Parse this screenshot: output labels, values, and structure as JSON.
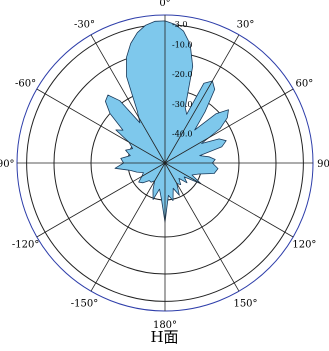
{
  "chart_data": {
    "type": "polar",
    "title": "H面",
    "radial_unit": "dB",
    "radial_range": [
      -50,
      0
    ],
    "grid": true,
    "colors": {
      "fill": "#7ec8ec",
      "stroke": "#1a3a5a",
      "outer_circle": "#2e3eaa",
      "grid": "#222222"
    },
    "angle_ticks": [
      {
        "angle": 0,
        "label": "0°"
      },
      {
        "angle": 30,
        "label": "30°"
      },
      {
        "angle": 60,
        "label": "60°"
      },
      {
        "angle": 90,
        "label": "90°"
      },
      {
        "angle": 120,
        "label": "120°"
      },
      {
        "angle": 150,
        "label": "150°"
      },
      {
        "angle": 180,
        "label": "180°"
      },
      {
        "angle": -150,
        "label": "-150°"
      },
      {
        "angle": -120,
        "label": "-120°"
      },
      {
        "angle": -90,
        "label": "-90°"
      },
      {
        "angle": -60,
        "label": "-60°"
      },
      {
        "angle": -30,
        "label": "-30°"
      }
    ],
    "radial_ticks": [
      {
        "value": -3,
        "label": "-3.0"
      },
      {
        "value": -10,
        "label": "-10.0"
      },
      {
        "value": -20,
        "label": "-20.0"
      },
      {
        "value": -30,
        "label": "-30.0"
      },
      {
        "value": -40,
        "label": "-40.0"
      }
    ],
    "series": [
      {
        "theta": [
          0,
          4,
          8,
          12,
          16,
          20,
          24,
          26,
          30,
          34,
          38,
          42,
          46,
          50,
          54,
          58,
          62,
          66,
          70,
          74,
          78,
          82,
          86,
          90,
          96,
          102,
          108,
          114,
          120,
          126,
          132,
          138,
          144,
          150,
          156,
          162,
          168,
          174,
          180,
          186,
          192,
          198,
          204,
          210,
          216,
          222,
          228,
          234,
          240,
          246,
          252,
          258,
          264,
          270,
          276,
          282,
          288,
          294,
          300,
          304,
          308,
          312,
          316,
          320,
          324,
          328,
          332,
          336,
          340,
          344,
          348,
          352,
          356
        ],
        "r_db": [
          -2,
          -3,
          -5,
          -9,
          -16,
          -30,
          -32,
          -20,
          -18,
          -20,
          -28,
          -35,
          -26,
          -22,
          -24,
          -28,
          -36,
          -30,
          -28,
          -30,
          -38,
          -35,
          -33,
          -34,
          -32,
          -33,
          -38,
          -40,
          -36,
          -42,
          -40,
          -43,
          -41,
          -42,
          -38,
          -41,
          -37,
          -39,
          -30,
          -38,
          -41,
          -37,
          -40,
          -43,
          -42,
          -42,
          -40,
          -39,
          -41,
          -42,
          -40,
          -38,
          -33,
          -36,
          -35,
          -38,
          -36,
          -38,
          -36,
          -30,
          -32,
          -25,
          -21,
          -20,
          -24,
          -34,
          -30,
          -18,
          -12,
          -8,
          -5,
          -3,
          -2
        ]
      }
    ],
    "caption": "H面"
  }
}
